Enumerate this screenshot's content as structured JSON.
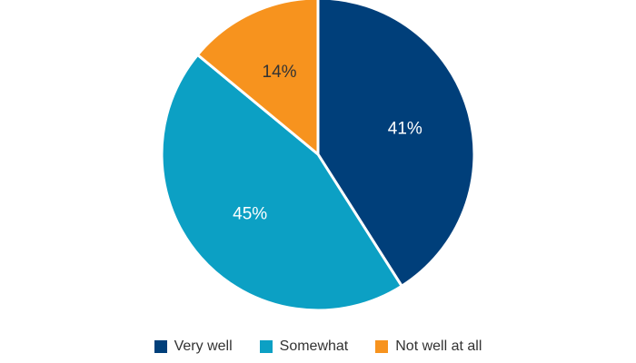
{
  "chart_data": {
    "type": "pie",
    "start_angle_deg": 0,
    "direction": "clockwise",
    "slices": [
      {
        "label": "Very well",
        "value": 41,
        "value_label": "41%",
        "color": "#003F7A",
        "label_color": "#ffffff"
      },
      {
        "label": "Somewhat",
        "value": 45,
        "value_label": "45%",
        "color": "#0CA0C4",
        "label_color": "#ffffff"
      },
      {
        "label": "Not well at all",
        "value": 14,
        "value_label": "14%",
        "color": "#F7931E",
        "label_color": "#333333"
      }
    ],
    "legend_position": "bottom"
  }
}
